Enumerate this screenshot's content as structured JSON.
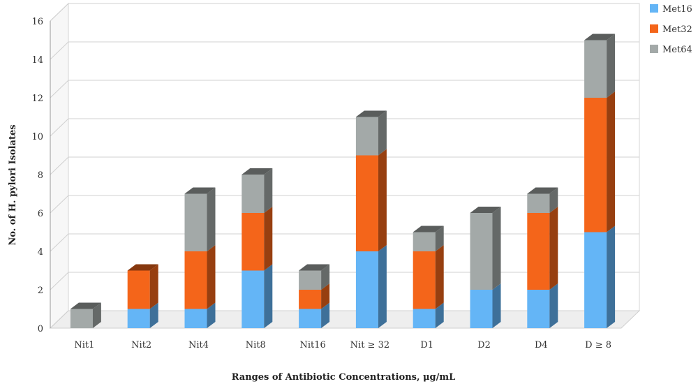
{
  "chart_data": {
    "type": "bar",
    "stacked": true,
    "categories": [
      "Nit1",
      "Nit2",
      "Nit4",
      "Nit8",
      "Nit16",
      "Nit ≥ 32",
      "D1",
      "D2",
      "D4",
      "D ≥ 8"
    ],
    "series": [
      {
        "name": "Met16",
        "color": "#64b5f6",
        "values": [
          0,
          1,
          1,
          3,
          1,
          4,
          1,
          2,
          2,
          5
        ]
      },
      {
        "name": "Met32",
        "color": "#f4651a",
        "values": [
          0,
          2,
          3,
          3,
          1,
          5,
          3,
          0,
          4,
          7
        ]
      },
      {
        "name": "Met64",
        "color": "#a3a9a8",
        "values": [
          1,
          0,
          3,
          2,
          1,
          2,
          1,
          4,
          1,
          3
        ]
      }
    ],
    "title": "",
    "xlabel": "Ranges of Antibiotic Concentrations, μg/mL",
    "ylabel": "No. of H. pylori Isolates",
    "ylim": [
      0,
      16
    ],
    "yticks": [
      0,
      2,
      4,
      6,
      8,
      10,
      12,
      14,
      16
    ],
    "grid": true,
    "legend": "top-right",
    "style": "3d"
  }
}
